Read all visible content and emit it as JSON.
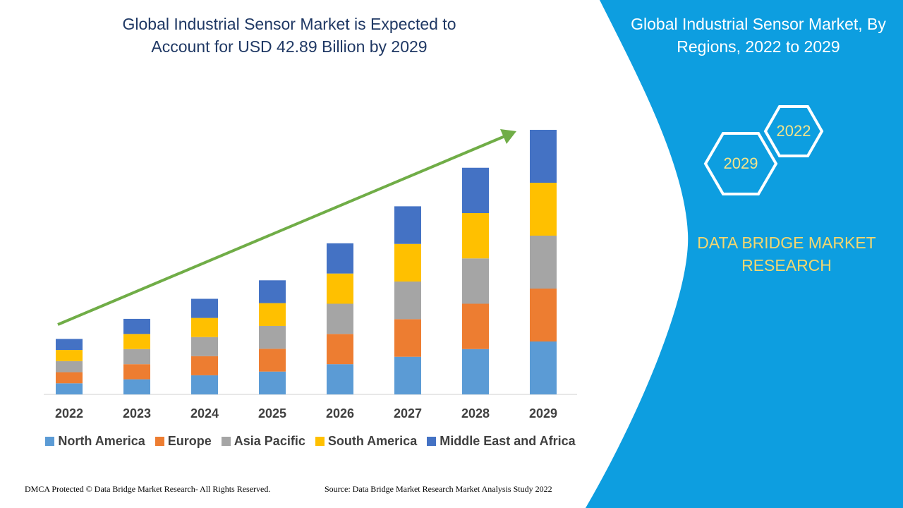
{
  "chart_data": {
    "type": "bar",
    "stacked": true,
    "title": "Global Industrial Sensor Market is Expected to Account for USD 42.89 Billion by 2029",
    "categories": [
      "2022",
      "2023",
      "2024",
      "2025",
      "2026",
      "2027",
      "2028",
      "2029"
    ],
    "series": [
      {
        "name": "North America",
        "color": "#5b9bd5",
        "values": [
          1.8,
          2.45,
          3.1,
          3.7,
          4.9,
          6.1,
          7.35,
          8.58
        ]
      },
      {
        "name": "Europe",
        "color": "#ed7d31",
        "values": [
          1.8,
          2.45,
          3.1,
          3.7,
          4.9,
          6.1,
          7.35,
          8.58
        ]
      },
      {
        "name": "Asia Pacific",
        "color": "#a5a5a5",
        "values": [
          1.8,
          2.45,
          3.1,
          3.7,
          4.9,
          6.1,
          7.35,
          8.58
        ]
      },
      {
        "name": "South America",
        "color": "#ffc000",
        "values": [
          1.8,
          2.45,
          3.1,
          3.7,
          4.9,
          6.1,
          7.35,
          8.58
        ]
      },
      {
        "name": "Middle East and Africa",
        "color": "#4472c4",
        "values": [
          1.8,
          2.45,
          3.1,
          3.7,
          4.9,
          6.1,
          7.35,
          8.58
        ]
      }
    ]
  },
  "panel": {
    "title": "Global Industrial Sensor Market, By Regions, 2022 to 2029",
    "hexagons": [
      "2022",
      "2029"
    ],
    "brand": "DATA BRIDGE MARKET RESEARCH"
  },
  "footer": {
    "copyright": "DMCA Protected © Data Bridge Market Research- All Rights Reserved.",
    "source": "Source: Data Bridge Market Research Market Analysis Study 2022"
  }
}
